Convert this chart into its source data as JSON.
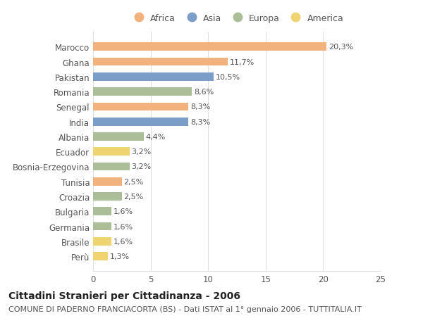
{
  "countries": [
    "Marocco",
    "Ghana",
    "Pakistan",
    "Romania",
    "Senegal",
    "India",
    "Albania",
    "Ecuador",
    "Bosnia-Erzegovina",
    "Tunisia",
    "Croazia",
    "Bulgaria",
    "Germania",
    "Brasile",
    "Perù"
  ],
  "values": [
    20.3,
    11.7,
    10.5,
    8.6,
    8.3,
    8.3,
    4.4,
    3.2,
    3.2,
    2.5,
    2.5,
    1.6,
    1.6,
    1.6,
    1.3
  ],
  "labels": [
    "20,3%",
    "11,7%",
    "10,5%",
    "8,6%",
    "8,3%",
    "8,3%",
    "4,4%",
    "3,2%",
    "3,2%",
    "2,5%",
    "2,5%",
    "1,6%",
    "1,6%",
    "1,6%",
    "1,3%"
  ],
  "continents": [
    "Africa",
    "Africa",
    "Asia",
    "Europa",
    "Africa",
    "Asia",
    "Europa",
    "America",
    "Europa",
    "Africa",
    "Europa",
    "Europa",
    "Europa",
    "America",
    "America"
  ],
  "colors": {
    "Africa": "#F2B27E",
    "Asia": "#7A9EC8",
    "Europa": "#ABBE97",
    "America": "#F0D472"
  },
  "legend_order": [
    "Africa",
    "Asia",
    "Europa",
    "America"
  ],
  "legend_colors": [
    "#F2B27E",
    "#7A9EC8",
    "#ABBE97",
    "#F0D472"
  ],
  "title": "Cittadini Stranieri per Cittadinanza - 2006",
  "subtitle": "COMUNE DI PADERNO FRANCIACORTA (BS) - Dati ISTAT al 1° gennaio 2006 - TUTTITALIA.IT",
  "xlim": [
    0,
    25
  ],
  "xticks": [
    0,
    5,
    10,
    15,
    20,
    25
  ],
  "background_color": "#ffffff",
  "bar_height": 0.55,
  "grid_color": "#e0e0e0",
  "text_color": "#555555",
  "label_color": "#555555",
  "title_fontsize": 10,
  "subtitle_fontsize": 8,
  "label_fontsize": 8,
  "tick_fontsize": 8.5,
  "legend_fontsize": 9
}
